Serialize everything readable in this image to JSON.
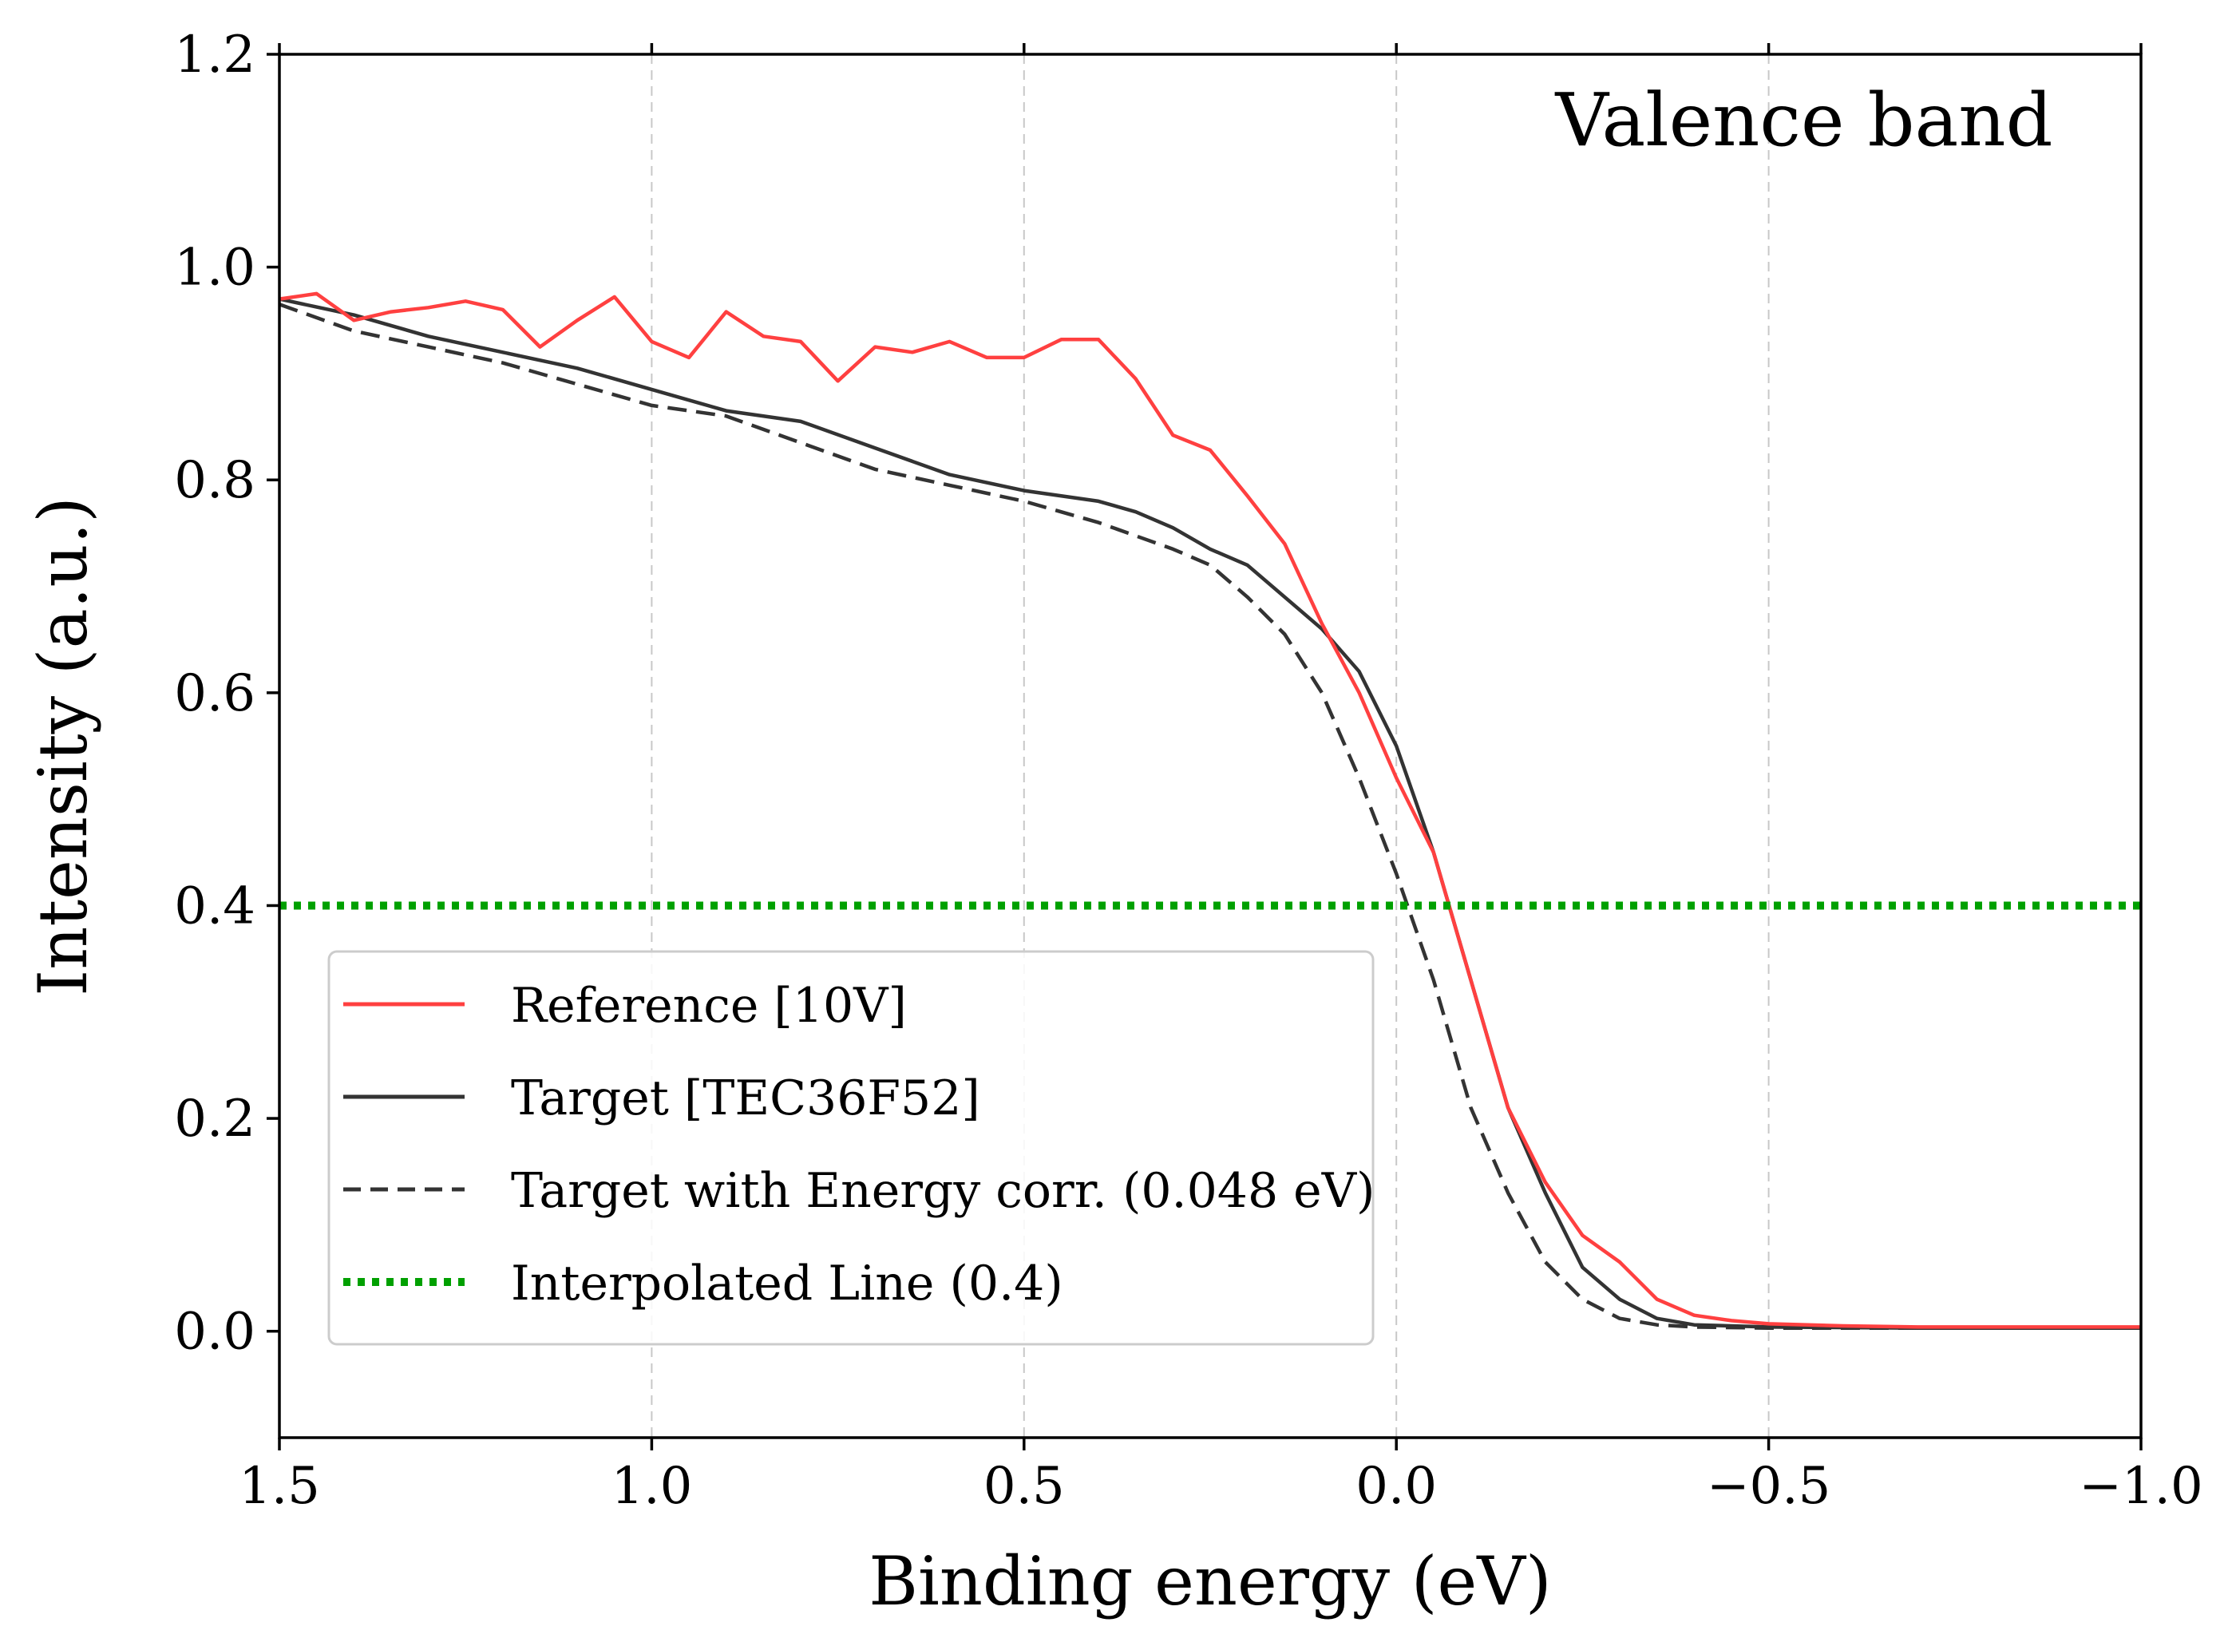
{
  "chart_data": {
    "type": "line",
    "title": "",
    "annotation": "Valence band",
    "xlabel": "Binding energy (eV)",
    "ylabel": "Intensity (a.u.)",
    "xlim": [
      1.5,
      -1.0
    ],
    "ylim": [
      -0.1,
      1.2
    ],
    "x_ticks": [
      1.5,
      1.0,
      0.5,
      0.0,
      -0.5,
      -1.0
    ],
    "x_tick_labels": [
      "1.5",
      "1.0",
      "0.5",
      "0.0",
      "−0.5",
      "−1.0"
    ],
    "y_ticks": [
      0.0,
      0.2,
      0.4,
      0.6,
      0.8,
      1.0,
      1.2
    ],
    "y_tick_labels": [
      "0.0",
      "0.2",
      "0.4",
      "0.6",
      "0.8",
      "1.0",
      "1.2"
    ],
    "grid": "vertical dashed at x ticks",
    "legend_position": "lower-left",
    "series": [
      {
        "name": "Reference [10V]",
        "color": "#ff4040",
        "style": "solid",
        "x": [
          1.5,
          1.45,
          1.4,
          1.35,
          1.3,
          1.25,
          1.2,
          1.15,
          1.1,
          1.05,
          1.0,
          0.95,
          0.9,
          0.85,
          0.8,
          0.75,
          0.7,
          0.65,
          0.6,
          0.55,
          0.5,
          0.45,
          0.4,
          0.35,
          0.3,
          0.25,
          0.2,
          0.15,
          0.1,
          0.05,
          0.0,
          -0.05,
          -0.1,
          -0.15,
          -0.2,
          -0.25,
          -0.3,
          -0.35,
          -0.4,
          -0.45,
          -0.5,
          -0.6,
          -0.7,
          -0.8,
          -0.9,
          -1.0
        ],
        "y": [
          0.97,
          0.975,
          0.95,
          0.958,
          0.962,
          0.968,
          0.96,
          0.925,
          0.95,
          0.972,
          0.93,
          0.915,
          0.958,
          0.935,
          0.93,
          0.893,
          0.925,
          0.92,
          0.93,
          0.915,
          0.915,
          0.932,
          0.932,
          0.895,
          0.842,
          0.828,
          0.785,
          0.74,
          0.665,
          0.6,
          0.52,
          0.45,
          0.33,
          0.21,
          0.14,
          0.09,
          0.065,
          0.03,
          0.015,
          0.01,
          0.007,
          0.005,
          0.004,
          0.004,
          0.004,
          0.004
        ]
      },
      {
        "name": "Target [TEC36F52]",
        "color": "#333333",
        "style": "solid",
        "x": [
          1.5,
          1.4,
          1.3,
          1.2,
          1.1,
          1.0,
          0.9,
          0.8,
          0.7,
          0.6,
          0.5,
          0.4,
          0.35,
          0.3,
          0.25,
          0.2,
          0.15,
          0.1,
          0.05,
          0.0,
          -0.05,
          -0.1,
          -0.15,
          -0.2,
          -0.25,
          -0.3,
          -0.35,
          -0.4,
          -0.5,
          -0.7,
          -1.0
        ],
        "y": [
          0.97,
          0.955,
          0.935,
          0.92,
          0.905,
          0.885,
          0.865,
          0.855,
          0.83,
          0.805,
          0.79,
          0.78,
          0.77,
          0.755,
          0.735,
          0.72,
          0.69,
          0.66,
          0.62,
          0.55,
          0.45,
          0.33,
          0.21,
          0.13,
          0.06,
          0.03,
          0.012,
          0.006,
          0.004,
          0.003,
          0.003
        ]
      },
      {
        "name": "Target with Energy corr. (0.048 eV)",
        "color": "#333333",
        "style": "dashed",
        "x": [
          1.5,
          1.4,
          1.3,
          1.2,
          1.1,
          1.0,
          0.9,
          0.8,
          0.7,
          0.6,
          0.5,
          0.4,
          0.3,
          0.25,
          0.2,
          0.15,
          0.1,
          0.05,
          0.0,
          -0.05,
          -0.1,
          -0.15,
          -0.2,
          -0.25,
          -0.3,
          -0.35,
          -0.4,
          -0.5,
          -0.7,
          -1.0
        ],
        "y": [
          0.965,
          0.94,
          0.925,
          0.91,
          0.89,
          0.87,
          0.86,
          0.835,
          0.81,
          0.795,
          0.78,
          0.76,
          0.735,
          0.72,
          0.69,
          0.655,
          0.6,
          0.52,
          0.43,
          0.33,
          0.21,
          0.13,
          0.065,
          0.03,
          0.012,
          0.006,
          0.004,
          0.003,
          0.003,
          0.003
        ]
      },
      {
        "name": "Interpolated Line (0.4)",
        "color": "#00a000",
        "style": "dotted",
        "x": [
          1.5,
          -1.0
        ],
        "y": [
          0.4,
          0.4
        ]
      }
    ]
  }
}
